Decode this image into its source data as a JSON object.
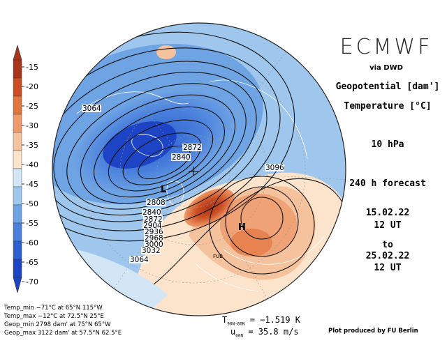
{
  "header": {
    "model": "ECMWF",
    "via": "via DWD",
    "field1": "Geopotential [dam']",
    "field2": "Temperature [°C]",
    "level": "10 hPa",
    "forecast": "240 h forecast",
    "init_date": "15.02.22",
    "init_time": "12 UT",
    "to": "to",
    "valid_date": "25.02.22",
    "valid_time": "12 UT"
  },
  "colorbar": {
    "ticks": [
      "-15",
      "-20",
      "-25",
      "-30",
      "-35",
      "-40",
      "-45",
      "-50",
      "-55",
      "-60",
      "-65",
      "-70"
    ],
    "colors": [
      "#a8341c",
      "#cc4e22",
      "#e27640",
      "#ee9a6a",
      "#f5c29e",
      "#fbe3cc",
      "#d3e6f6",
      "#9fc7ee",
      "#6ea3e4",
      "#4a80dc",
      "#2c5fd0",
      "#1d44c4"
    ]
  },
  "map": {
    "contour_labels": [
      {
        "text": "3064"
      },
      {
        "text": "2872"
      },
      {
        "text": "2840"
      },
      {
        "text": "3096"
      },
      {
        "text": "2808"
      },
      {
        "text": "2840"
      },
      {
        "text": "2872"
      },
      {
        "text": "2904"
      },
      {
        "text": "2936"
      },
      {
        "text": "2968"
      },
      {
        "text": "3000"
      },
      {
        "text": "3032"
      },
      {
        "text": "3064"
      }
    ],
    "low_marker": "L",
    "high_marker": "H",
    "fub_label": "FUB"
  },
  "stats": {
    "temp_min": "Temp_min −71°C at 65°N 115°W",
    "temp_max": "Temp_max −12°C at 72.5°N 25°E",
    "geop_min": "Geop_min 2798 dam' at 75°N 65°W",
    "geop_max": "Geop_max 3122 dam' at 57.5°N 62.5°E"
  },
  "means": {
    "t_symbol": "T",
    "t_sub": "90N-60N",
    "t_value": "= −1.519 K",
    "u_symbol": "u",
    "u_sub": "60N",
    "u_value": "= 35.8 m/s"
  },
  "credit": "Plot produced by FU Berlin"
}
